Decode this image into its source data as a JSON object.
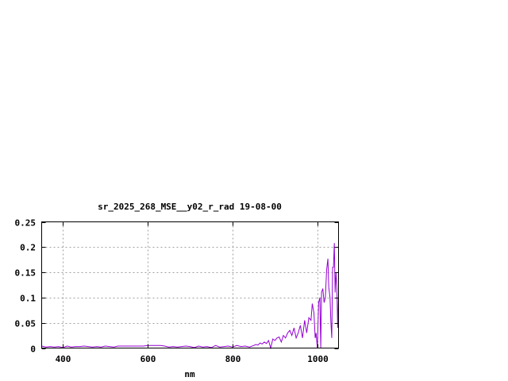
{
  "chart_data": {
    "type": "line",
    "title": "sr_2025_268_MSE__y02_r_rad 19-08-00",
    "xlabel": "nm",
    "ylabel": "",
    "xlim": [
      350,
      1050
    ],
    "ylim": [
      0,
      0.25
    ],
    "grid": true,
    "legend": "none",
    "xticks": [
      400,
      600,
      800,
      1000
    ],
    "xtick_labels": [
      "400",
      "600",
      "800",
      "1000"
    ],
    "yticks": [
      0,
      0.05,
      0.1,
      0.15,
      0.2,
      0.25
    ],
    "ytick_labels": [
      "0",
      "0.05",
      "0.1",
      "0.15",
      "0.2",
      "0.25"
    ],
    "colors": {
      "series": "#9400d3",
      "grid": "#a0a0a0",
      "axes": "#000000"
    },
    "series": [
      {
        "x": [
          350,
          360,
          370,
          380,
          390,
          400,
          410,
          420,
          430,
          440,
          450,
          460,
          470,
          480,
          490,
          500,
          510,
          520,
          530,
          540,
          550,
          560,
          570,
          580,
          590,
          600,
          610,
          620,
          630,
          640,
          650,
          660,
          670,
          680,
          690,
          700,
          710,
          720,
          730,
          740,
          750,
          760,
          770,
          780,
          790,
          800,
          810,
          820,
          830,
          840,
          850,
          855,
          860,
          865,
          870,
          875,
          880,
          885,
          890,
          895,
          900,
          905,
          910,
          915,
          920,
          925,
          930,
          935,
          940,
          945,
          950,
          955,
          960,
          965,
          970,
          975,
          980,
          985,
          988,
          992,
          995,
          997,
          1000,
          1003,
          1006,
          1008,
          1010,
          1013,
          1016,
          1019,
          1022,
          1025,
          1027,
          1030,
          1032,
          1034,
          1036,
          1038,
          1040,
          1042,
          1044,
          1046,
          1048,
          1050
        ],
        "y": [
          0.004,
          0.002,
          0.003,
          0.002,
          0.003,
          0.001,
          0.004,
          0.002,
          0.003,
          0.003,
          0.004,
          0.003,
          0.002,
          0.003,
          0.002,
          0.004,
          0.003,
          0.002,
          0.004,
          0.004,
          0.004,
          0.004,
          0.004,
          0.004,
          0.004,
          0.005,
          0.005,
          0.005,
          0.005,
          0.004,
          0.002,
          0.003,
          0.002,
          0.003,
          0.004,
          0.003,
          0.001,
          0.004,
          0.002,
          0.003,
          0.001,
          0.005,
          0.002,
          0.003,
          0.004,
          0.002,
          0.005,
          0.003,
          0.004,
          0.002,
          0.005,
          0.007,
          0.006,
          0.01,
          0.008,
          0.012,
          0.009,
          0.015,
          0.0,
          0.018,
          0.015,
          0.02,
          0.022,
          0.012,
          0.025,
          0.02,
          0.03,
          0.035,
          0.025,
          0.04,
          0.02,
          0.03,
          0.045,
          0.02,
          0.055,
          0.03,
          0.06,
          0.055,
          0.088,
          0.07,
          0.02,
          0.03,
          0.0,
          0.09,
          0.1,
          0.0,
          0.11,
          0.118,
          0.09,
          0.1,
          0.155,
          0.177,
          0.12,
          0.1,
          0.05,
          0.02,
          0.16,
          0.16,
          0.208,
          0.11,
          0.15,
          0.12,
          0.04,
          0.11
        ]
      }
    ]
  }
}
